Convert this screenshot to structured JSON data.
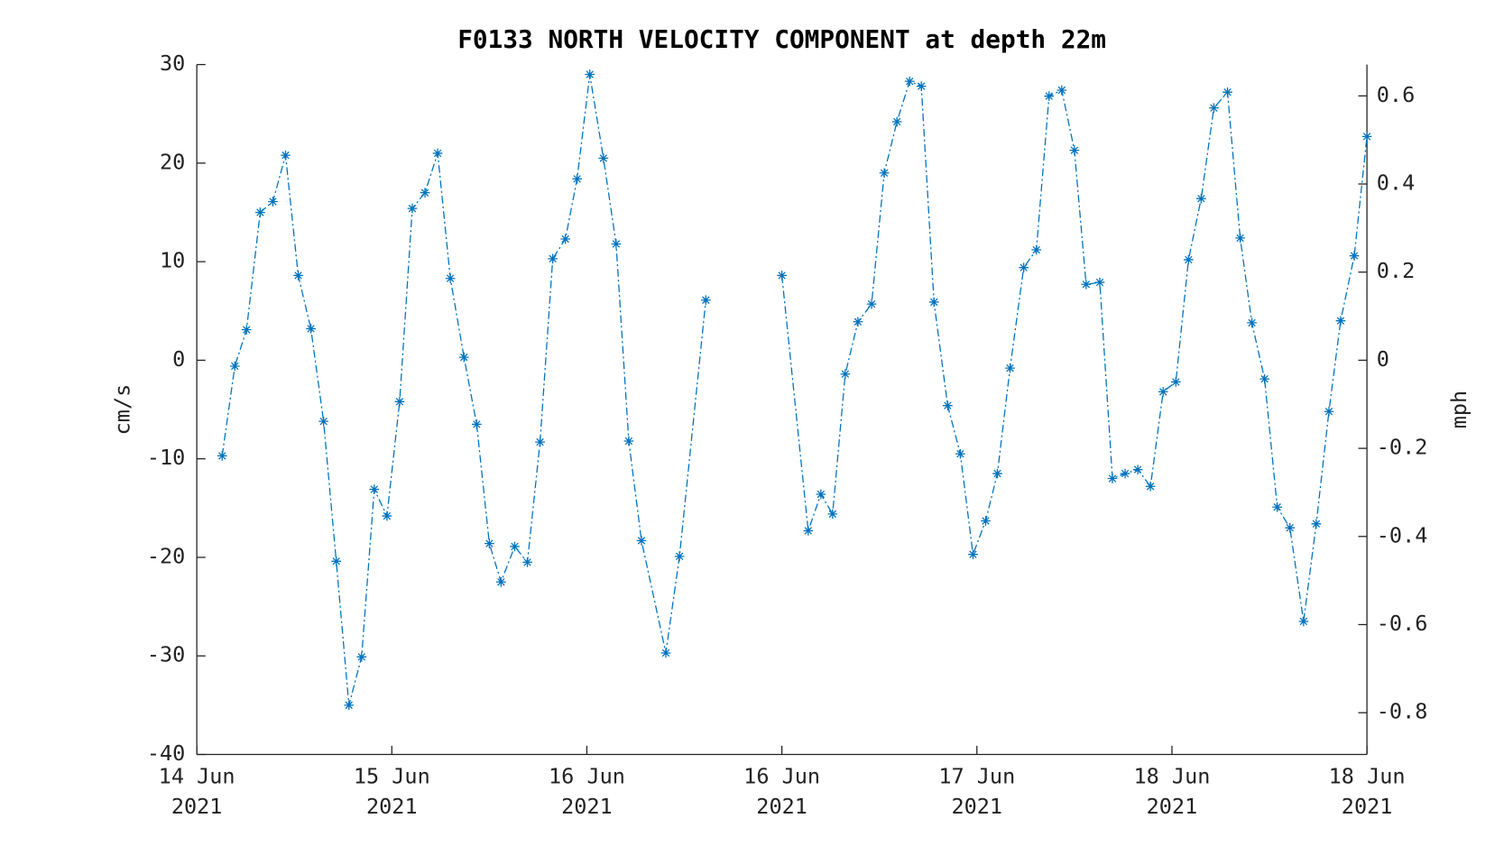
{
  "chart_data": {
    "type": "line",
    "title": "F0133 NORTH VELOCITY COMPONENT at depth 22m",
    "y_label": "cm/s",
    "y2_label": "mph",
    "xlim": [
      0,
      120
    ],
    "xticks": [
      {
        "value": 0,
        "label": [
          "14 Jun",
          "2021"
        ]
      },
      {
        "value": 20,
        "label": [
          "15 Jun",
          "2021"
        ]
      },
      {
        "value": 40,
        "label": [
          "16 Jun",
          "2021"
        ]
      },
      {
        "value": 60,
        "label": [
          "16 Jun",
          "2021"
        ]
      },
      {
        "value": 80,
        "label": [
          "17 Jun",
          "2021"
        ]
      },
      {
        "value": 100,
        "label": [
          "18 Jun",
          "2021"
        ]
      },
      {
        "value": 120,
        "label": [
          "18 Jun",
          "2021"
        ]
      }
    ],
    "ylim": [
      -40,
      30
    ],
    "yticks": [
      -40,
      -30,
      -20,
      -10,
      0,
      10,
      20,
      30
    ],
    "y2lim": [
      -0.8948,
      0.6711
    ],
    "y2ticks": [
      -0.8,
      -0.6,
      -0.4,
      -0.2,
      0,
      0.2,
      0.4,
      0.6
    ],
    "series": [
      {
        "color": "#0072bd",
        "x": [
          2.6,
          3.9,
          5.1,
          6.5,
          7.8,
          9.1,
          10.4,
          11.7,
          13.0,
          14.3,
          15.6,
          16.9,
          18.2,
          19.5,
          20.8,
          22.1,
          23.4,
          24.7,
          26.0,
          27.4,
          28.7,
          30.0,
          31.2,
          32.6,
          33.9,
          35.2,
          36.5,
          37.8,
          39.0,
          40.3,
          41.7,
          43.0,
          44.3,
          45.6,
          48.1,
          49.5,
          52.2,
          56.0,
          60.0,
          62.7,
          64.0,
          65.2,
          66.5,
          67.8,
          69.2,
          70.5,
          71.8,
          73.1,
          74.3,
          75.6,
          77.0,
          78.3,
          79.6,
          80.9,
          82.1,
          83.4,
          84.8,
          86.1,
          87.4,
          88.7,
          90.0,
          91.2,
          92.6,
          93.9,
          95.2,
          96.5,
          97.8,
          99.1,
          100.4,
          101.7,
          103.0,
          104.3,
          105.7,
          107.0,
          108.2,
          109.5,
          110.8,
          112.1,
          113.5,
          114.8,
          116.1,
          117.3,
          118.7,
          120.0
        ],
        "values": [
          -9.7,
          -0.6,
          3.1,
          15.0,
          16.1,
          20.8,
          8.6,
          3.2,
          -6.2,
          -20.4,
          -35.0,
          -30.1,
          -13.1,
          -15.8,
          -4.2,
          15.4,
          17.0,
          21.0,
          8.3,
          0.3,
          -6.5,
          -18.6,
          -22.5,
          -18.9,
          -20.5,
          -8.3,
          10.3,
          12.3,
          18.4,
          29.0,
          20.5,
          11.8,
          -8.2,
          -18.3,
          -29.7,
          -19.9,
          6.1,
          null,
          8.6,
          -17.3,
          -13.6,
          -15.6,
          -1.4,
          3.9,
          5.7,
          19.0,
          24.2,
          28.3,
          27.8,
          5.9,
          -4.6,
          -9.5,
          -19.7,
          -16.3,
          -11.5,
          -0.8,
          9.4,
          11.2,
          26.8,
          27.4,
          21.3,
          7.7,
          7.9,
          -12.0,
          -11.5,
          -11.1,
          -12.8,
          -3.2,
          -2.2,
          10.2,
          16.4,
          25.6,
          27.2,
          12.4,
          3.8,
          -1.9,
          -14.9,
          -17.0,
          -26.5,
          -16.6,
          -5.2,
          4.0,
          10.6,
          22.7
        ]
      }
    ]
  }
}
